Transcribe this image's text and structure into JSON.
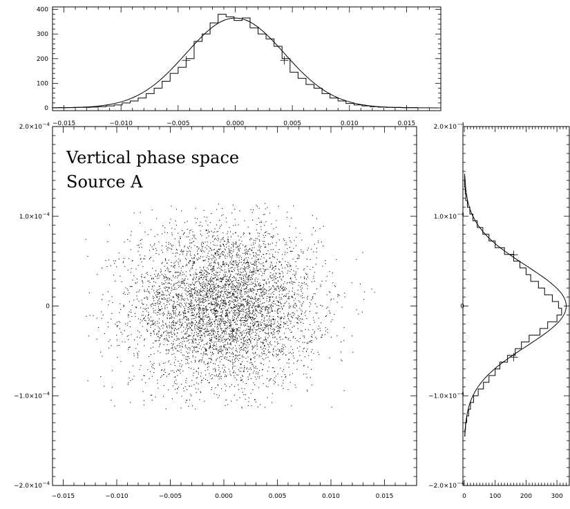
{
  "chart_data": [
    {
      "id": "scatter",
      "type": "scatter",
      "annotation": [
        "Vertical phase space",
        "Source A"
      ],
      "xlim": [
        -0.016,
        0.018
      ],
      "ylim": [
        -0.0002,
        0.0002
      ],
      "x_ticks": [
        -0.015,
        -0.01,
        -0.005,
        0.0,
        0.005,
        0.01,
        0.015
      ],
      "x_tick_labels": [
        "−0.015",
        "−0.010",
        "−0.005",
        "0.000",
        "0.005",
        "0.010",
        "0.015"
      ],
      "y_ticks": [
        -0.0002,
        -0.0001,
        0,
        0.0001,
        0.0002
      ],
      "y_tick_labels": [
        {
          "mant": "−2.0×10",
          "exp": "−4"
        },
        {
          "mant": "−1.0×10",
          "exp": "−4"
        },
        {
          "mant": "0",
          "exp": ""
        },
        {
          "mant": "1.0×10",
          "exp": "−4"
        },
        {
          "mant": "2.0×10",
          "exp": "−4"
        }
      ],
      "points": {
        "count": 5000,
        "x_mean": 0.0,
        "x_sigma": 0.0043,
        "y_mean": 0.0,
        "y_sigma": 4.5e-05,
        "x_extent": [
          -0.013,
          0.015
        ],
        "y_extent": [
          -0.000115,
          0.000115
        ]
      }
    },
    {
      "id": "x-histogram",
      "type": "bar",
      "xlim": [
        -0.016,
        0.018
      ],
      "ylim": [
        0,
        410
      ],
      "x_ticks": [
        -0.015,
        -0.01,
        -0.005,
        0.0,
        0.005,
        0.01,
        0.015
      ],
      "x_tick_labels": [
        "−0.015",
        "−0.010",
        "−0.005",
        "0.000",
        "0.005",
        "0.010",
        "0.015"
      ],
      "y_ticks": [
        0,
        100,
        200,
        300,
        400
      ],
      "y_tick_labels": [
        "0",
        "100",
        "200",
        "300",
        "400"
      ],
      "bin_start": -0.0155,
      "bin_width": 0.0007,
      "counts": [
        1,
        1,
        2,
        2,
        3,
        5,
        8,
        12,
        20,
        28,
        40,
        58,
        80,
        108,
        140,
        165,
        200,
        270,
        300,
        345,
        380,
        370,
        355,
        365,
        325,
        300,
        280,
        250,
        200,
        145,
        120,
        95,
        80,
        58,
        40,
        28,
        18,
        12,
        8,
        5,
        3,
        2,
        2,
        1,
        1
      ],
      "fit": {
        "type": "gaussian",
        "mean": 0.0,
        "sigma": 0.0043,
        "peak": 365
      },
      "markers": [
        {
          "x": -0.0043,
          "y": 193
        },
        {
          "x": 0.0043,
          "y": 193
        }
      ]
    },
    {
      "id": "y-histogram",
      "type": "bar",
      "orientation": "horizontal",
      "xlim": [
        0,
        340
      ],
      "ylim": [
        -0.0002,
        0.0002
      ],
      "x_ticks": [
        0,
        100,
        200,
        300
      ],
      "x_tick_labels": [
        "0",
        "100",
        "200",
        "300"
      ],
      "bin_start": -0.000145,
      "bin_width": 7.5e-06,
      "counts": [
        2,
        4,
        8,
        14,
        20,
        30,
        45,
        62,
        80,
        100,
        115,
        140,
        165,
        185,
        210,
        245,
        270,
        300,
        315,
        305,
        285,
        260,
        240,
        215,
        200,
        180,
        160,
        130,
        100,
        80,
        60,
        42,
        28,
        18,
        10,
        5,
        3,
        1,
        1
      ],
      "fit": {
        "type": "gaussian",
        "mean": 0.0,
        "sigma": 4.5e-05,
        "peak": 330
      },
      "markers": [
        {
          "x": 160,
          "y": 5.7e-05
        },
        {
          "x": 160,
          "y": -5.7e-05
        }
      ]
    }
  ]
}
